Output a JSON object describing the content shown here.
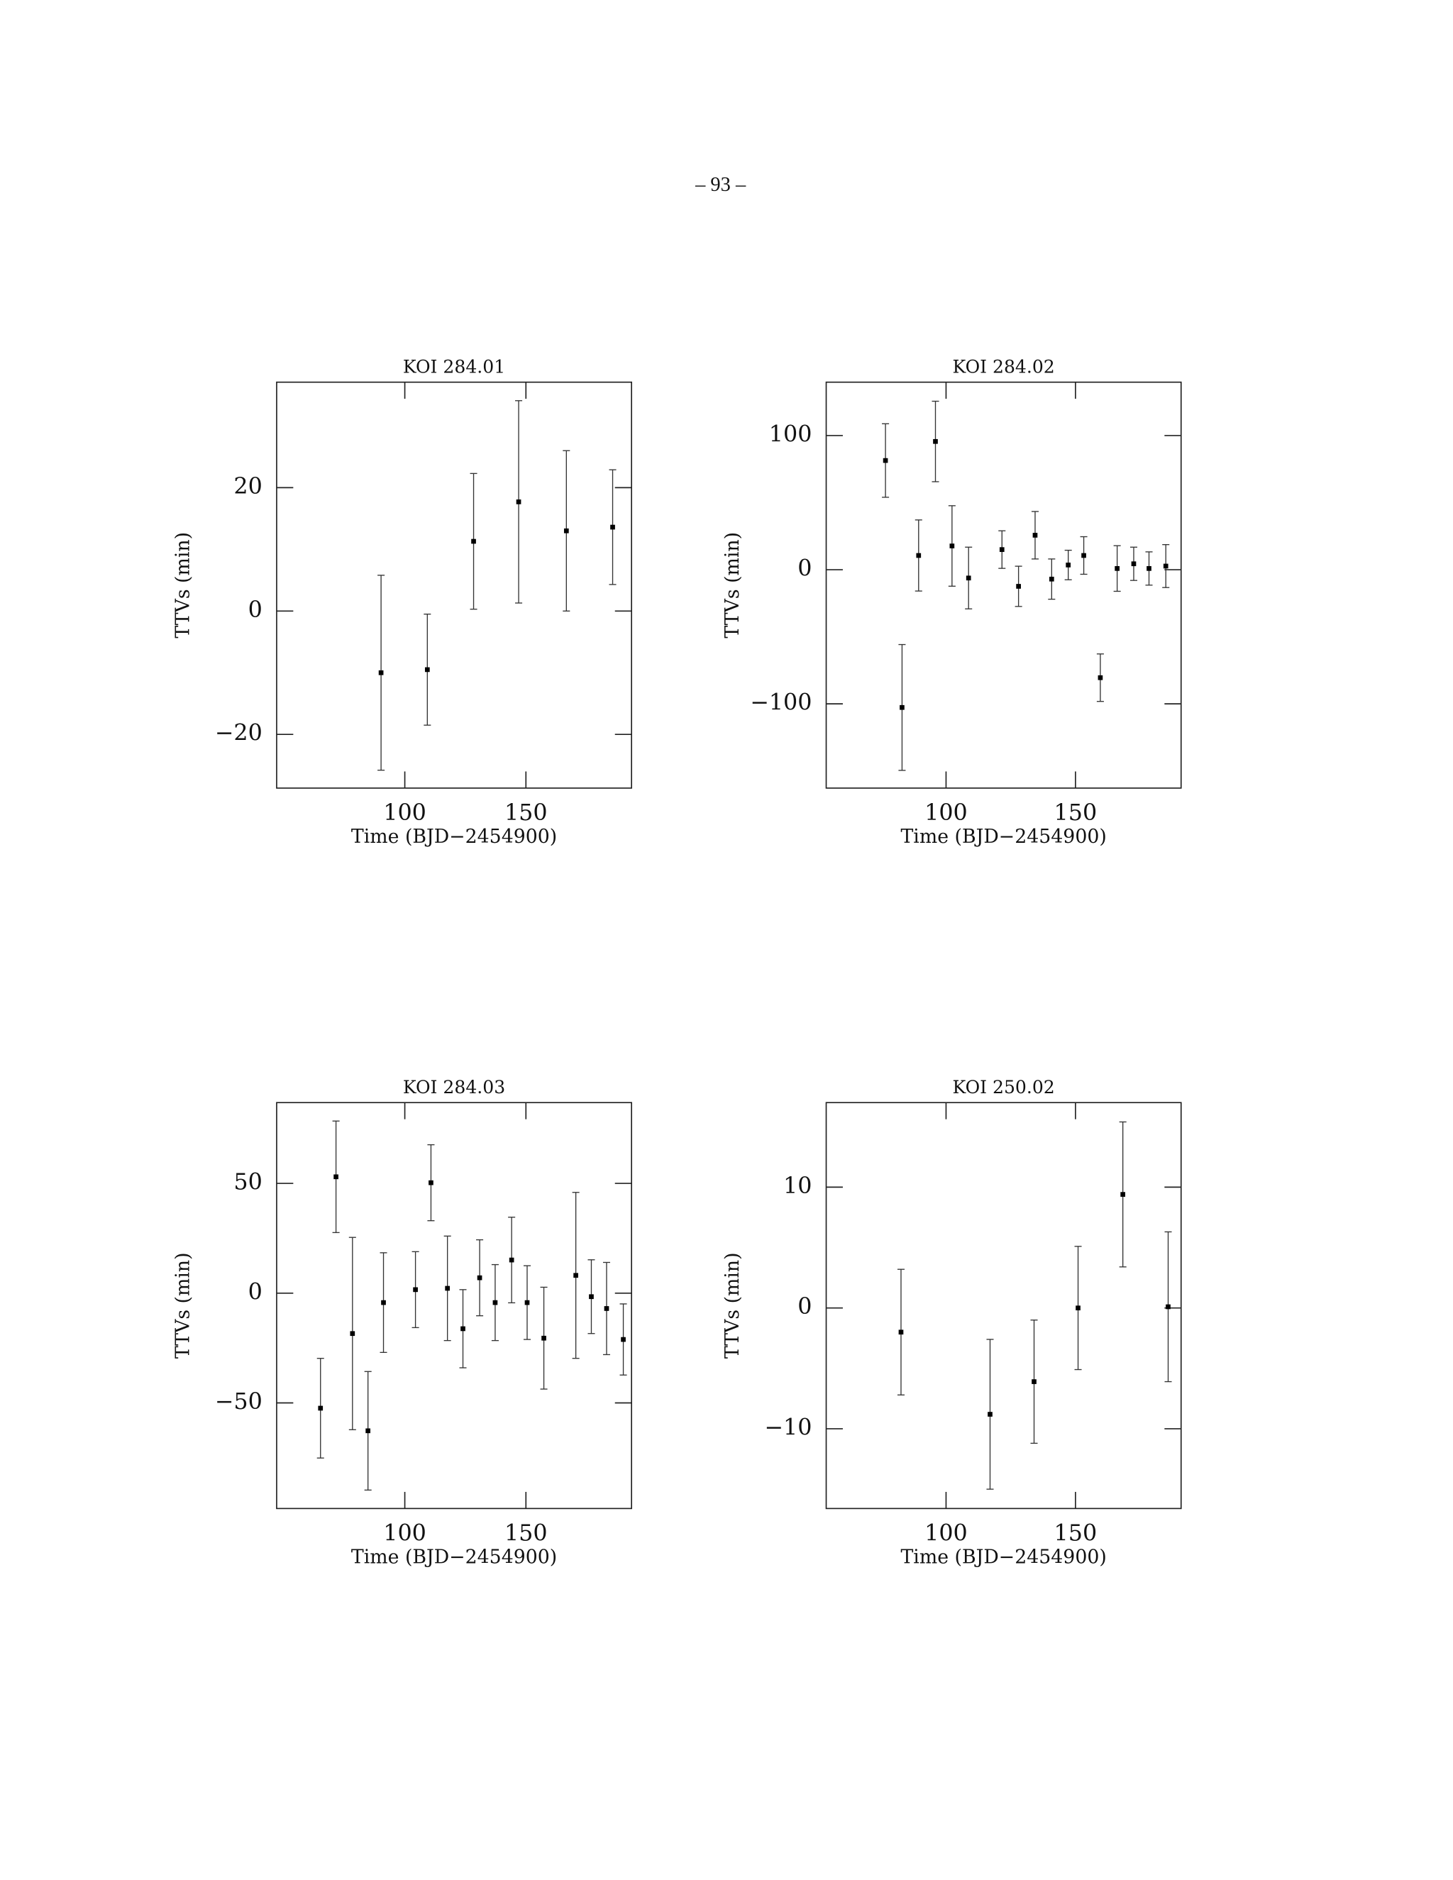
{
  "page_number": "– 93 –",
  "chart_data": [
    {
      "type": "errorbar",
      "title": "KOI 284.01",
      "x_label": "Time (BJD−2454900)",
      "y_label": "TTVs (min)",
      "x": [
        90.2,
        109.3,
        128.4,
        147.0,
        166.7,
        185.8
      ],
      "values": [
        -10,
        -9.5,
        11.3,
        17.7,
        13,
        13.6
      ],
      "errors": [
        15.8,
        9,
        11,
        16.4,
        13,
        9.3
      ],
      "xlim": [
        47.1,
        193.6
      ],
      "ylim": [
        -28.7,
        37.1
      ],
      "xticks": [
        100,
        150
      ],
      "yticks": [
        {
          "value": -20,
          "label": "−20"
        },
        0,
        20
      ]
    },
    {
      "type": "errorbar",
      "title": "KOI 284.02",
      "x_label": "Time (BJD−2454900)",
      "y_label": "TTVs (min)",
      "x": [
        76.6,
        83.0,
        89.4,
        95.9,
        102.3,
        108.7,
        121.6,
        128.0,
        134.4,
        140.8,
        147.2,
        153.2,
        159.6,
        166.1,
        172.5,
        178.4,
        184.9
      ],
      "values": [
        81.4,
        -102.7,
        10.6,
        95.6,
        17.7,
        -6.2,
        15,
        -12.4,
        25.7,
        -7,
        3.5,
        10.6,
        -80.5,
        0.9,
        4.4,
        0.9,
        2.7
      ],
      "errors": [
        27.4,
        46.9,
        26.5,
        30,
        30,
        23,
        14,
        15,
        17.7,
        15,
        11,
        14,
        17.7,
        17,
        12.4,
        12.4,
        16
      ],
      "xlim": [
        53.7,
        190.8
      ],
      "ylim": [
        -162.8,
        139.8
      ],
      "xticks": [
        100,
        150
      ],
      "yticks": [
        {
          "value": -100,
          "label": "−100"
        },
        0,
        100
      ]
    },
    {
      "type": "errorbar",
      "title": "KOI 284.03",
      "x_label": "Time (BJD−2454900)",
      "y_label": "TTVs (min)",
      "x": [
        65.2,
        71.6,
        78.4,
        84.8,
        91.2,
        104.4,
        110.8,
        117.6,
        124.0,
        130.9,
        137.3,
        144.1,
        150.5,
        157.4,
        170.6,
        177.0,
        183.3,
        190.2
      ],
      "values": [
        -52.4,
        53,
        -18.4,
        -62.7,
        -4.3,
        1.6,
        50.3,
        2.2,
        -16.2,
        7,
        -4.3,
        15.1,
        -4.3,
        -20.5,
        8.1,
        -1.6,
        -7,
        -21.1
      ],
      "errors": [
        22.7,
        25.4,
        43.8,
        27,
        22.7,
        17.3,
        17.3,
        23.8,
        17.8,
        17.3,
        17.3,
        19.5,
        16.8,
        23.2,
        37.8,
        16.8,
        21,
        16.2
      ],
      "xlim": [
        47.1,
        193.6
      ],
      "ylim": [
        -98.1,
        86.8
      ],
      "xticks": [
        100,
        150
      ],
      "yticks": [
        {
          "value": -50,
          "label": "−50"
        },
        0,
        50
      ]
    },
    {
      "type": "errorbar",
      "title": "KOI 250.02",
      "x_label": "Time (BJD−2454900)",
      "y_label": "TTVs (min)",
      "x": [
        82.6,
        117.0,
        134.0,
        151.0,
        168.3,
        185.8
      ],
      "values": [
        -2,
        -8.8,
        -6.1,
        0,
        9.4,
        0.1
      ],
      "errors": [
        5.2,
        6.2,
        5.1,
        5.1,
        6,
        6.2
      ],
      "xlim": [
        53.7,
        190.8
      ],
      "ylim": [
        -16.6,
        17
      ],
      "xticks": [
        100,
        150
      ],
      "yticks": [
        {
          "value": -10,
          "label": "−10"
        },
        0,
        10
      ]
    }
  ]
}
